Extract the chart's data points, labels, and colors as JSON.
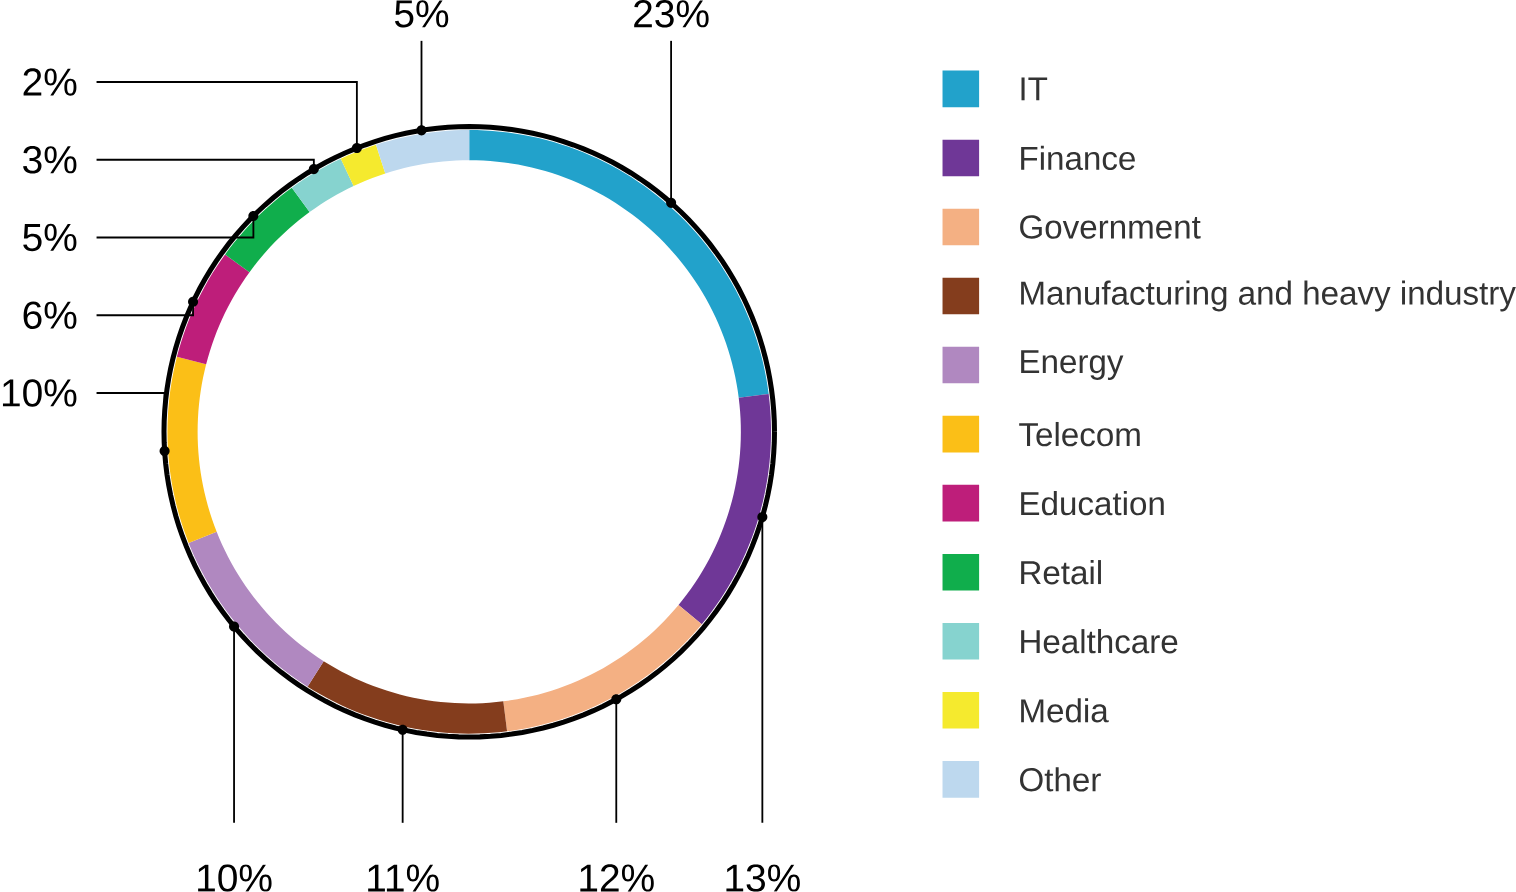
{
  "chart_data": {
    "type": "donut",
    "categories": [
      "IT",
      "Finance",
      "Government",
      "Manufacturing and heavy industry",
      "Energy",
      "Telecom",
      "Education",
      "Retail",
      "Healthcare",
      "Media",
      "Other"
    ],
    "values": [
      23,
      13,
      12,
      11,
      10,
      10,
      6,
      5,
      3,
      2,
      5
    ],
    "colors": [
      "#22a2cb",
      "#6f3797",
      "#f4b083",
      "#843d1d",
      "#b088c0",
      "#fbbf17",
      "#be1e7a",
      "#10ae4c",
      "#86d3cf",
      "#f5ea2e",
      "#bdd8ee"
    ],
    "value_labels": [
      "23%",
      "13%",
      "12%",
      "11%",
      "10%",
      "10%",
      "6%",
      "5%",
      "3%",
      "2%",
      "5%"
    ],
    "legend": "right"
  }
}
